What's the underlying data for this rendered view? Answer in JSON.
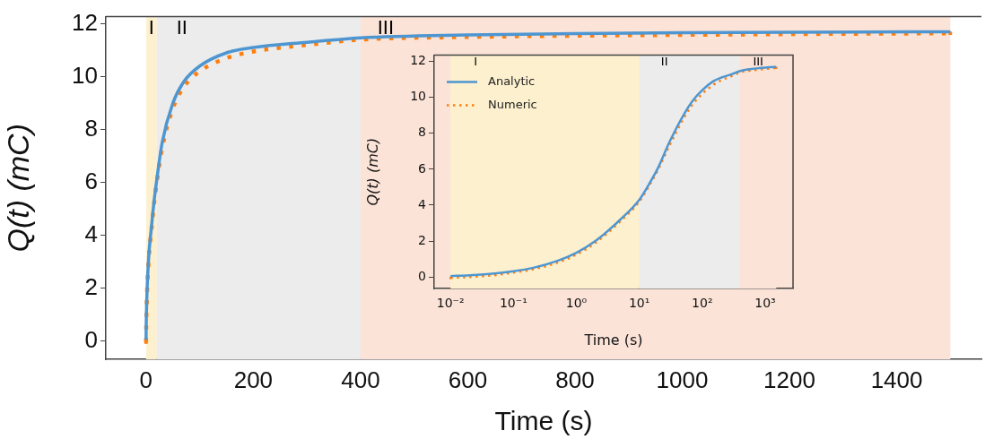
{
  "chart_data": [
    {
      "type": "line",
      "xlabel": "Time (s)",
      "ylabel": "Q(t) (mC)",
      "xlim": [
        -75,
        1558
      ],
      "ylim": [
        -0.7,
        12.27
      ],
      "xticks": [
        0,
        200,
        400,
        600,
        800,
        1000,
        1200,
        1400
      ],
      "yticks": [
        0,
        2,
        4,
        6,
        8,
        10,
        12
      ],
      "marker": "none",
      "legend": false,
      "x": [
        0.01,
        0.02,
        0.05,
        0.1,
        0.2,
        0.5,
        1,
        2,
        5,
        10,
        15,
        20,
        30,
        50,
        70,
        100,
        150,
        200,
        300,
        400,
        600,
        800,
        1000,
        1200,
        1500
      ],
      "series": [
        {
          "color": "#4e96d1",
          "line_style": "solid",
          "values": [
            0.05,
            0.1,
            0.2,
            0.32,
            0.5,
            0.9,
            1.35,
            2.0,
            3.2,
            4.3,
            5.3,
            6.1,
            7.5,
            9.0,
            9.8,
            10.4,
            10.9,
            11.1,
            11.3,
            11.47,
            11.58,
            11.63,
            11.66,
            11.68,
            11.7
          ]
        },
        {
          "color": "#ff7f0e",
          "line_style": "dotted",
          "values": [
            -0.05,
            0.0,
            0.1,
            0.25,
            0.42,
            0.8,
            1.25,
            1.9,
            3.1,
            4.2,
            5.2,
            6.0,
            7.3,
            8.8,
            9.6,
            10.2,
            10.7,
            10.95,
            11.2,
            11.4,
            11.5,
            11.55,
            11.58,
            11.61,
            11.64
          ]
        }
      ],
      "bands": [
        {
          "axis": "x",
          "from": 0,
          "to": 20,
          "label": "I",
          "color": "#fdf0cf"
        },
        {
          "axis": "x",
          "from": 20,
          "to": 400,
          "label": "II",
          "color": "#ececec"
        },
        {
          "axis": "x",
          "from": 400,
          "to": 1500,
          "label": "III",
          "color": "#fbe3d8"
        }
      ]
    },
    {
      "type": "line",
      "xlabel": "Time (s)",
      "ylabel": "Q(t) (mC)",
      "log": "x",
      "xlim": [
        0.0055,
        2770
      ],
      "ylim": [
        -0.64,
        12.36
      ],
      "xticks": [
        {
          "value": 0.01,
          "label": "10⁻²"
        },
        {
          "value": 0.1,
          "label": "10⁻¹"
        },
        {
          "value": 1,
          "label": "10⁰"
        },
        {
          "value": 10,
          "label": "10¹"
        },
        {
          "value": 100,
          "label": "10²"
        },
        {
          "value": 1000,
          "label": "10³"
        }
      ],
      "yticks": [
        0,
        2,
        4,
        6,
        8,
        10,
        12
      ],
      "marker": "none",
      "legend": "top left",
      "x": [
        0.01,
        0.02,
        0.05,
        0.1,
        0.2,
        0.5,
        1,
        2,
        5,
        10,
        15,
        20,
        30,
        50,
        70,
        100,
        150,
        200,
        300,
        400,
        600,
        800,
        1000,
        1200,
        1500
      ],
      "series": [
        {
          "name": "Analytic",
          "color": "#4e96d1",
          "line_style": "solid",
          "values": [
            0.05,
            0.1,
            0.2,
            0.32,
            0.5,
            0.9,
            1.35,
            2.0,
            3.2,
            4.3,
            5.3,
            6.1,
            7.5,
            9.0,
            9.8,
            10.4,
            10.9,
            11.1,
            11.3,
            11.47,
            11.58,
            11.63,
            11.66,
            11.68,
            11.7
          ]
        },
        {
          "name": "Numeric",
          "color": "#ff7f0e",
          "line_style": "dotted",
          "values": [
            -0.05,
            0.0,
            0.1,
            0.25,
            0.42,
            0.8,
            1.25,
            1.9,
            3.1,
            4.2,
            5.2,
            6.0,
            7.3,
            8.8,
            9.6,
            10.2,
            10.7,
            10.95,
            11.2,
            11.4,
            11.5,
            11.55,
            11.58,
            11.61,
            11.64
          ]
        }
      ],
      "bands": [
        {
          "axis": "x",
          "from": 0.01,
          "to": 10,
          "label": "I",
          "color": "#fdf0cf"
        },
        {
          "axis": "x",
          "from": 10,
          "to": 400,
          "label": "II",
          "color": "#ececec"
        },
        {
          "axis": "x",
          "from": 400,
          "to": 1500,
          "label": "III",
          "color": "#fbe3d8"
        }
      ]
    }
  ]
}
